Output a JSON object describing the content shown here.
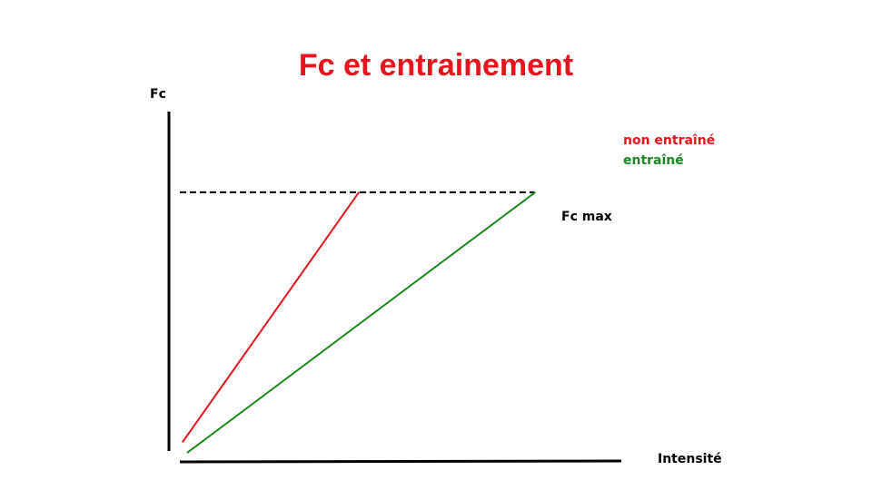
{
  "chart_data": {
    "type": "line",
    "title": "Fc et entrainement",
    "ylabel": "Fc",
    "xlabel": "Intensité",
    "reference_line": {
      "label": "Fc max",
      "style": "dashed",
      "y": 1.0
    },
    "xlim": [
      0,
      1
    ],
    "ylim": [
      0,
      1.3
    ],
    "legend": {
      "placement": "top-right"
    },
    "series": [
      {
        "name": "non entraîné",
        "color": "#e8141b",
        "points": [
          [
            0.03,
            0.07
          ],
          [
            0.42,
            1.0
          ]
        ]
      },
      {
        "name": "entraîné",
        "color": "#1a8a1a",
        "points": [
          [
            0.04,
            0.03
          ],
          [
            0.81,
            1.0
          ]
        ]
      }
    ],
    "colors": {
      "title": "#e8141b",
      "axis": "#000000"
    }
  }
}
